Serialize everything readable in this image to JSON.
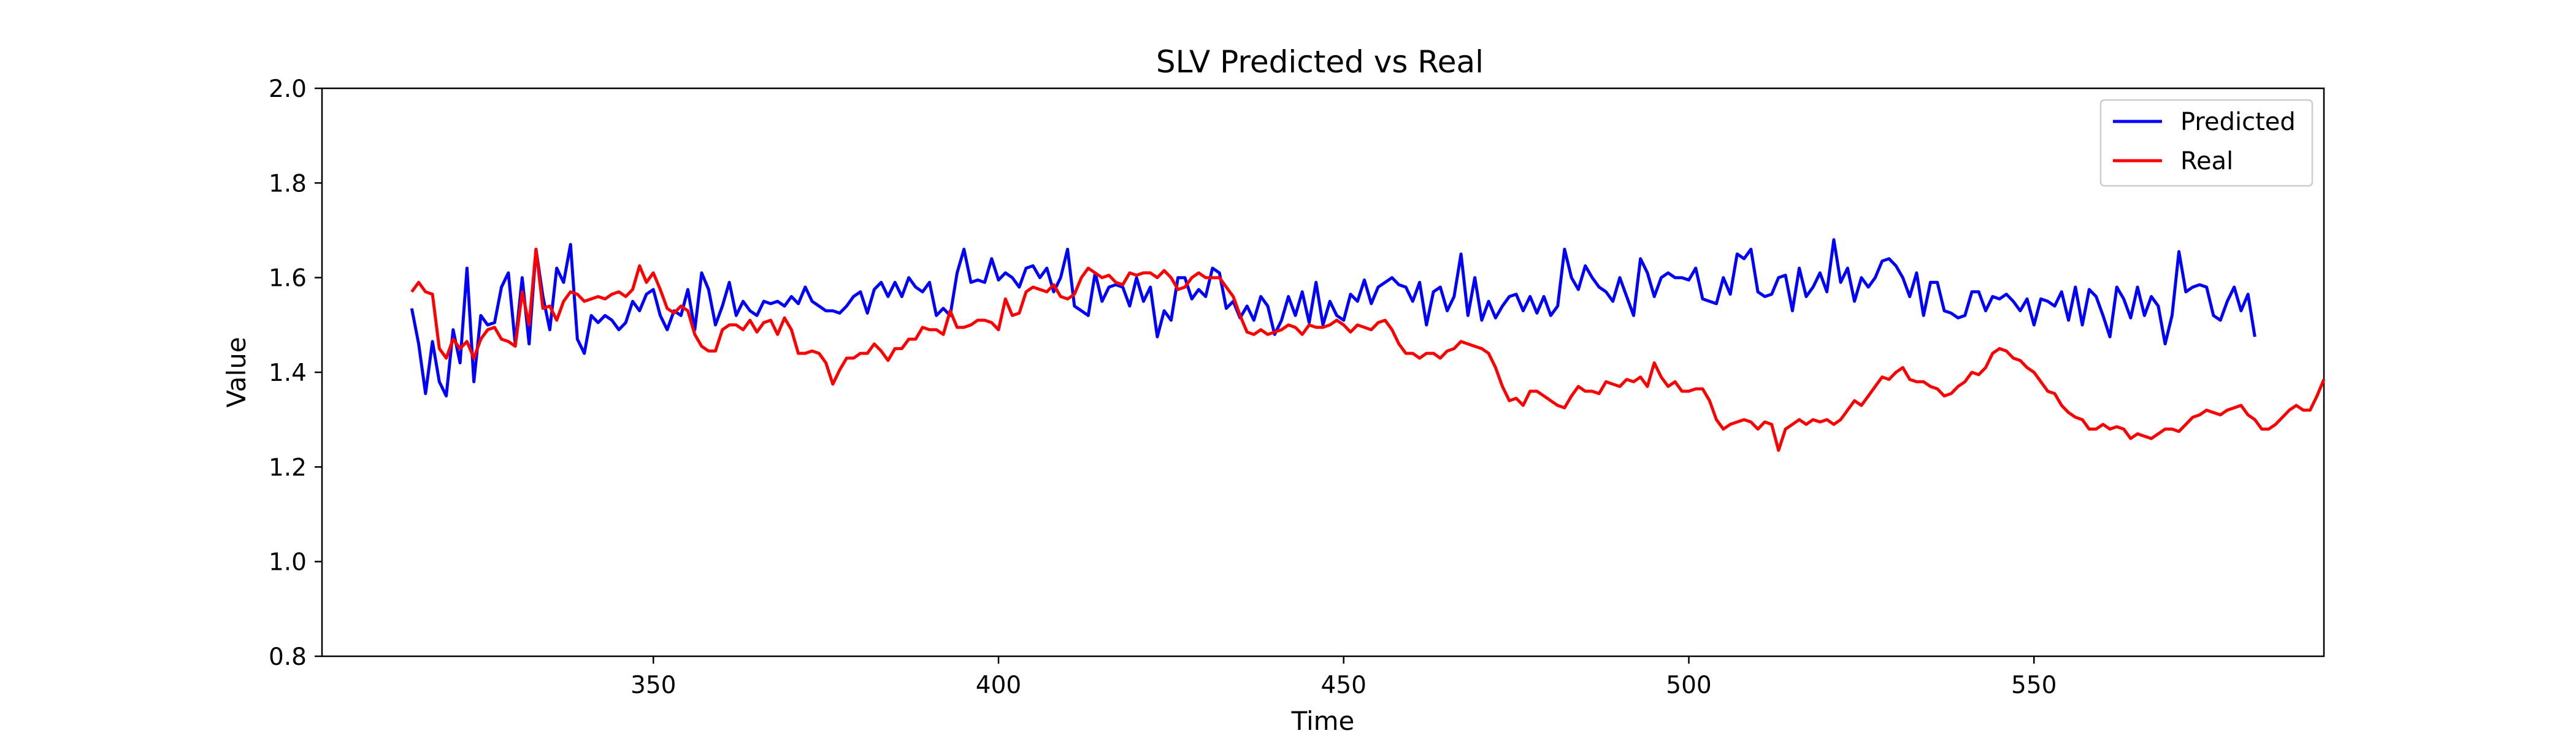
{
  "colors": {
    "predicted": "#0000ff",
    "real": "#ff0000",
    "axes": "#000000",
    "background": "#ffffff"
  },
  "chart_data": {
    "type": "line",
    "title": "SLV Predicted vs Real",
    "xlabel": "Time",
    "ylabel": "Value",
    "xlim": [
      302,
      592
    ],
    "ylim": [
      0.8,
      2.0
    ],
    "xticks": [
      350,
      400,
      450,
      500,
      550
    ],
    "yticks": [
      0.8,
      1.0,
      1.2,
      1.4,
      1.6,
      1.8,
      2.0
    ],
    "xtick_labels": [
      "350",
      "400",
      "450",
      "500",
      "550"
    ],
    "ytick_labels": [
      "0.8",
      "1.0",
      "1.2",
      "1.4",
      "1.6",
      "1.8",
      "2.0"
    ],
    "grid": false,
    "legend_position": "top-right",
    "series": [
      {
        "name": "Predicted",
        "color": "#0000ff",
        "x_start": 315,
        "x_step": 1,
        "values": [
          1.535,
          1.46,
          1.355,
          1.465,
          1.38,
          1.35,
          1.49,
          1.42,
          1.62,
          1.38,
          1.52,
          1.5,
          1.505,
          1.58,
          1.61,
          1.46,
          1.6,
          1.46,
          1.66,
          1.56,
          1.49,
          1.62,
          1.59,
          1.67,
          1.47,
          1.44,
          1.52,
          1.505,
          1.52,
          1.51,
          1.49,
          1.505,
          1.55,
          1.53,
          1.565,
          1.575,
          1.52,
          1.49,
          1.53,
          1.52,
          1.575,
          1.49,
          1.61,
          1.575,
          1.5,
          1.54,
          1.59,
          1.52,
          1.55,
          1.53,
          1.52,
          1.55,
          1.545,
          1.55,
          1.54,
          1.56,
          1.545,
          1.58,
          1.55,
          1.54,
          1.53,
          1.53,
          1.525,
          1.54,
          1.56,
          1.57,
          1.525,
          1.575,
          1.59,
          1.56,
          1.59,
          1.56,
          1.6,
          1.58,
          1.57,
          1.59,
          1.52,
          1.535,
          1.52,
          1.61,
          1.66,
          1.59,
          1.595,
          1.59,
          1.64,
          1.595,
          1.61,
          1.6,
          1.58,
          1.62,
          1.625,
          1.6,
          1.62,
          1.57,
          1.6,
          1.66,
          1.54,
          1.53,
          1.52,
          1.61,
          1.55,
          1.58,
          1.585,
          1.58,
          1.54,
          1.6,
          1.55,
          1.58,
          1.475,
          1.53,
          1.51,
          1.6,
          1.6,
          1.555,
          1.575,
          1.56,
          1.62,
          1.61,
          1.535,
          1.55,
          1.515,
          1.54,
          1.51,
          1.56,
          1.54,
          1.48,
          1.51,
          1.56,
          1.52,
          1.57,
          1.505,
          1.59,
          1.5,
          1.55,
          1.52,
          1.51,
          1.565,
          1.55,
          1.595,
          1.545,
          1.58,
          1.59,
          1.6,
          1.585,
          1.58,
          1.55,
          1.59,
          1.5,
          1.57,
          1.58,
          1.53,
          1.56,
          1.65,
          1.52,
          1.6,
          1.51,
          1.55,
          1.515,
          1.54,
          1.56,
          1.565,
          1.53,
          1.56,
          1.525,
          1.56,
          1.52,
          1.54,
          1.66,
          1.6,
          1.575,
          1.625,
          1.6,
          1.58,
          1.57,
          1.55,
          1.6,
          1.56,
          1.52,
          1.64,
          1.61,
          1.56,
          1.6,
          1.61,
          1.6,
          1.6,
          1.595,
          1.62,
          1.555,
          1.55,
          1.545,
          1.6,
          1.565,
          1.65,
          1.64,
          1.66,
          1.57,
          1.56,
          1.565,
          1.6,
          1.605,
          1.53,
          1.62,
          1.56,
          1.58,
          1.61,
          1.57,
          1.68,
          1.59,
          1.62,
          1.55,
          1.6,
          1.58,
          1.6,
          1.635,
          1.64,
          1.625,
          1.6,
          1.56,
          1.61,
          1.52,
          1.59,
          1.59,
          1.53,
          1.525,
          1.515,
          1.52,
          1.57,
          1.57,
          1.53,
          1.56,
          1.555,
          1.565,
          1.55,
          1.53,
          1.555,
          1.5,
          1.555,
          1.55,
          1.54,
          1.57,
          1.51,
          1.58,
          1.5,
          1.575,
          1.56,
          1.52,
          1.475,
          1.58,
          1.555,
          1.515,
          1.58,
          1.52,
          1.56,
          1.54,
          1.46,
          1.52,
          1.655,
          1.57,
          1.58,
          1.585,
          1.58,
          1.52,
          1.51,
          1.55,
          1.58,
          1.53,
          1.565,
          1.475
        ]
      },
      {
        "name": "Real",
        "color": "#ff0000",
        "x_start": 315,
        "x_step": 1,
        "values": [
          1.57,
          1.59,
          1.57,
          1.565,
          1.45,
          1.43,
          1.47,
          1.45,
          1.465,
          1.43,
          1.47,
          1.49,
          1.495,
          1.47,
          1.465,
          1.455,
          1.57,
          1.5,
          1.66,
          1.535,
          1.54,
          1.51,
          1.55,
          1.57,
          1.565,
          1.55,
          1.555,
          1.56,
          1.555,
          1.565,
          1.57,
          1.56,
          1.575,
          1.625,
          1.59,
          1.61,
          1.575,
          1.535,
          1.525,
          1.54,
          1.53,
          1.48,
          1.455,
          1.445,
          1.445,
          1.49,
          1.5,
          1.5,
          1.49,
          1.51,
          1.485,
          1.505,
          1.51,
          1.48,
          1.515,
          1.49,
          1.44,
          1.44,
          1.445,
          1.44,
          1.42,
          1.375,
          1.405,
          1.43,
          1.43,
          1.44,
          1.44,
          1.46,
          1.445,
          1.425,
          1.45,
          1.45,
          1.47,
          1.47,
          1.495,
          1.49,
          1.49,
          1.48,
          1.53,
          1.495,
          1.495,
          1.5,
          1.51,
          1.51,
          1.505,
          1.49,
          1.555,
          1.52,
          1.525,
          1.57,
          1.58,
          1.575,
          1.57,
          1.585,
          1.56,
          1.555,
          1.565,
          1.6,
          1.62,
          1.61,
          1.6,
          1.605,
          1.59,
          1.585,
          1.61,
          1.605,
          1.61,
          1.61,
          1.6,
          1.615,
          1.6,
          1.575,
          1.58,
          1.6,
          1.61,
          1.6,
          1.6,
          1.6,
          1.58,
          1.56,
          1.52,
          1.485,
          1.48,
          1.49,
          1.48,
          1.485,
          1.49,
          1.5,
          1.495,
          1.48,
          1.5,
          1.495,
          1.495,
          1.5,
          1.51,
          1.5,
          1.485,
          1.5,
          1.495,
          1.49,
          1.505,
          1.51,
          1.49,
          1.46,
          1.44,
          1.44,
          1.43,
          1.44,
          1.44,
          1.43,
          1.445,
          1.45,
          1.465,
          1.46,
          1.455,
          1.45,
          1.44,
          1.41,
          1.37,
          1.34,
          1.345,
          1.33,
          1.36,
          1.36,
          1.35,
          1.34,
          1.33,
          1.325,
          1.35,
          1.37,
          1.36,
          1.36,
          1.355,
          1.38,
          1.375,
          1.37,
          1.385,
          1.38,
          1.39,
          1.37,
          1.42,
          1.39,
          1.37,
          1.38,
          1.36,
          1.36,
          1.365,
          1.365,
          1.34,
          1.3,
          1.28,
          1.29,
          1.295,
          1.3,
          1.295,
          1.28,
          1.295,
          1.29,
          1.235,
          1.28,
          1.29,
          1.3,
          1.29,
          1.3,
          1.295,
          1.3,
          1.29,
          1.3,
          1.32,
          1.34,
          1.33,
          1.35,
          1.37,
          1.39,
          1.385,
          1.4,
          1.41,
          1.385,
          1.38,
          1.38,
          1.37,
          1.365,
          1.35,
          1.355,
          1.37,
          1.38,
          1.4,
          1.395,
          1.41,
          1.44,
          1.45,
          1.445,
          1.43,
          1.425,
          1.41,
          1.4,
          1.38,
          1.36,
          1.355,
          1.33,
          1.315,
          1.305,
          1.3,
          1.28,
          1.28,
          1.29,
          1.28,
          1.285,
          1.28,
          1.26,
          1.27,
          1.265,
          1.26,
          1.27,
          1.28,
          1.28,
          1.275,
          1.29,
          1.305,
          1.31,
          1.32,
          1.315,
          1.31,
          1.32,
          1.325,
          1.33,
          1.31,
          1.3,
          1.28,
          1.28,
          1.29,
          1.305,
          1.32,
          1.33,
          1.32,
          1.32,
          1.35,
          1.385
        ]
      }
    ]
  }
}
